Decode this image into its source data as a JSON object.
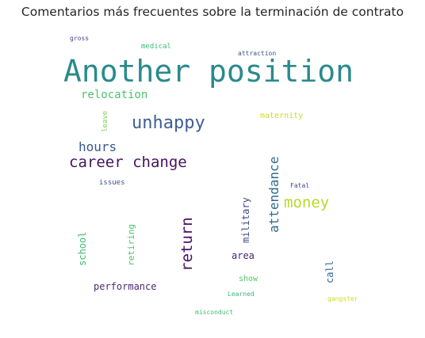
{
  "chart_data": {
    "type": "wordcloud",
    "title": "Comentarios más frecuentes sobre la terminación de contrato",
    "words": [
      {
        "text": "Another position",
        "weight": 100,
        "color": "#2a8a8c",
        "orientation": "horizontal"
      },
      {
        "text": "unhappy",
        "weight": 62,
        "color": "#3f5e96",
        "orientation": "horizontal"
      },
      {
        "text": "career change",
        "weight": 52,
        "color": "#46135e",
        "orientation": "horizontal"
      },
      {
        "text": "money",
        "weight": 52,
        "color": "#b7d92a",
        "orientation": "horizontal"
      },
      {
        "text": "return",
        "weight": 52,
        "color": "#470e61",
        "orientation": "vertical"
      },
      {
        "text": "attendance",
        "weight": 45,
        "color": "#2f6c8e",
        "orientation": "vertical"
      },
      {
        "text": "hours",
        "weight": 45,
        "color": "#3a5a8c",
        "orientation": "horizontal"
      },
      {
        "text": "relocation",
        "weight": 38,
        "color": "#4ec36b",
        "orientation": "horizontal"
      },
      {
        "text": "military",
        "weight": 33,
        "color": "#3f4888",
        "orientation": "vertical"
      },
      {
        "text": "school",
        "weight": 33,
        "color": "#3fbc73",
        "orientation": "vertical"
      },
      {
        "text": "performance",
        "weight": 32,
        "color": "#4c2872",
        "orientation": "horizontal"
      },
      {
        "text": "area",
        "weight": 32,
        "color": "#482475",
        "orientation": "horizontal"
      },
      {
        "text": "call",
        "weight": 32,
        "color": "#31688e",
        "orientation": "vertical"
      },
      {
        "text": "retiring",
        "weight": 30,
        "color": "#4cc16d",
        "orientation": "vertical"
      },
      {
        "text": "maternity",
        "weight": 28,
        "color": "#c6de27",
        "orientation": "horizontal"
      },
      {
        "text": "show",
        "weight": 28,
        "color": "#56c667",
        "orientation": "horizontal"
      },
      {
        "text": "medical",
        "weight": 26,
        "color": "#3cbc75",
        "orientation": "horizontal"
      },
      {
        "text": "issues",
        "weight": 26,
        "color": "#3d4e8a",
        "orientation": "horizontal"
      },
      {
        "text": "leave",
        "weight": 24,
        "color": "#7dd250",
        "orientation": "vertical"
      },
      {
        "text": "attraction",
        "weight": 16,
        "color": "#3b528b",
        "orientation": "horizontal"
      },
      {
        "text": "gross",
        "weight": 16,
        "color": "#414487",
        "orientation": "horizontal"
      },
      {
        "text": "Fatal",
        "weight": 16,
        "color": "#404788",
        "orientation": "horizontal"
      },
      {
        "text": "Learned",
        "weight": 16,
        "color": "#35b779",
        "orientation": "horizontal"
      },
      {
        "text": "gangster",
        "weight": 16,
        "color": "#c8e020",
        "orientation": "horizontal"
      },
      {
        "text": "misconduct",
        "weight": 16,
        "color": "#3fbc73",
        "orientation": "horizontal"
      }
    ]
  }
}
